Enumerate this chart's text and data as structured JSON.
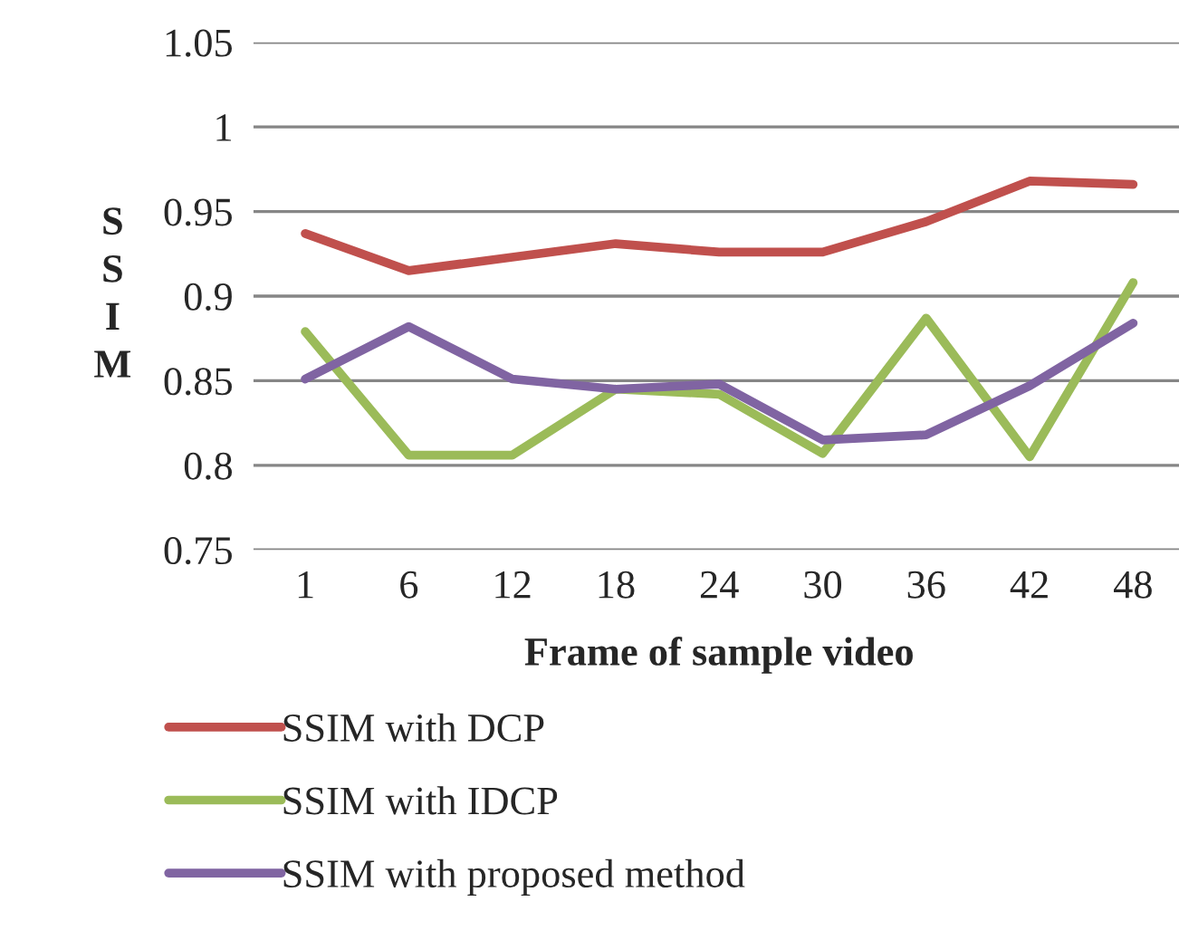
{
  "chart_data": {
    "type": "line",
    "xlabel": "Frame of sample video",
    "ylabel": "SSIM",
    "categories": [
      "1",
      "6",
      "12",
      "18",
      "24",
      "30",
      "36",
      "42",
      "48"
    ],
    "series": [
      {
        "name": "SSIM with DCP",
        "color": "#c0504d",
        "values": [
          0.937,
          0.915,
          0.923,
          0.931,
          0.926,
          0.926,
          0.944,
          0.968,
          0.966
        ]
      },
      {
        "name": "SSIM with IDCP",
        "color": "#9bbb59",
        "values": [
          0.879,
          0.806,
          0.806,
          0.845,
          0.842,
          0.807,
          0.887,
          0.805,
          0.908
        ]
      },
      {
        "name": "SSIM with proposed method",
        "color": "#8064a2",
        "values": [
          0.851,
          0.882,
          0.851,
          0.845,
          0.848,
          0.815,
          0.818,
          0.847,
          0.884
        ]
      }
    ],
    "ylim": [
      0.75,
      1.05
    ],
    "yticks": [
      0.75,
      0.8,
      0.85,
      0.9,
      0.95,
      1,
      1.05
    ],
    "grid": "y",
    "legend": "bottom",
    "line_style": "solid",
    "marker": "none"
  }
}
